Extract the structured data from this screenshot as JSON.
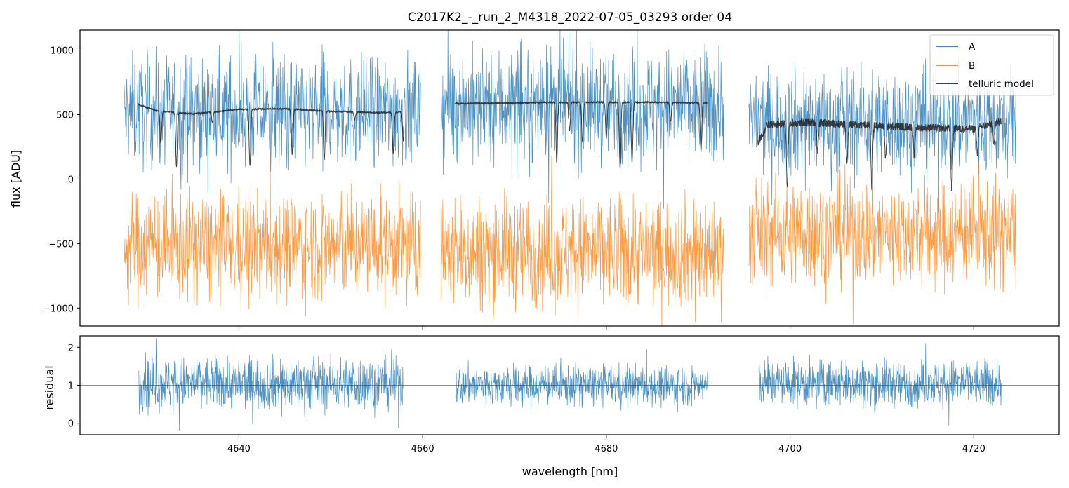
{
  "chart_data": [
    {
      "type": "line",
      "panel": "top",
      "title": "C2017K2_-_run_2_M4318_2022-07-05_03293  order 04",
      "xlabel": "",
      "ylabel": "flux [ADU]",
      "xlim": [
        4622.7,
        4729.3
      ],
      "ylim": [
        -1140,
        1155
      ],
      "yticks": [
        -1000,
        -500,
        0,
        500,
        1000
      ],
      "ytick_labels": [
        "−1000",
        "−500",
        "0",
        "500",
        "1000"
      ],
      "xticks": [
        4640,
        4660,
        4680,
        4700,
        4720
      ],
      "grid": false,
      "legend": {
        "placement": "top-right",
        "entries": [
          "A",
          "B",
          "telluric model"
        ]
      },
      "colors": {
        "A": "#1f77b4",
        "B": "#ff7f0e",
        "telluric model": "#222222"
      },
      "segments": [
        {
          "x_range": [
            4627.5,
            4659.8
          ]
        },
        {
          "x_range": [
            4662.0,
            4692.8
          ]
        },
        {
          "x_range": [
            4695.5,
            4724.6
          ]
        }
      ],
      "series": [
        {
          "name": "A",
          "style": "noisy spectrum",
          "level": [
            {
              "x_range": [
                4627.5,
                4659.8
              ],
              "mean": 520,
              "spread": 280
            },
            {
              "x_range": [
                4662.0,
                4692.8
              ],
              "mean": 570,
              "spread": 290
            },
            {
              "x_range": [
                4695.5,
                4724.6
              ],
              "mean": 440,
              "spread": 270
            }
          ]
        },
        {
          "name": "B",
          "style": "noisy spectrum",
          "level": [
            {
              "x_range": [
                4627.5,
                4659.8
              ],
              "mean": -520,
              "spread": 270
            },
            {
              "x_range": [
                4662.0,
                4692.8
              ],
              "mean": -560,
              "spread": 280
            },
            {
              "x_range": [
                4695.5,
                4724.6
              ],
              "mean": -420,
              "spread": 270
            }
          ]
        },
        {
          "name": "telluric model",
          "style": "continuum with absorption lines",
          "continuum": [
            {
              "x_range": [
                4629.0,
                4658.0
              ],
              "points": [
                [
                  4629.0,
                  580
                ],
                [
                  4631.0,
                  530
                ],
                [
                  4635.0,
                  505
                ],
                [
                  4640.0,
                  540
                ],
                [
                  4645.0,
                  545
                ],
                [
                  4650.0,
                  525
                ],
                [
                  4655.0,
                  515
                ],
                [
                  4658.0,
                  520
                ]
              ]
            },
            {
              "x_range": [
                4663.5,
                4691.0
              ],
              "points": [
                [
                  4663.5,
                  585
                ],
                [
                  4670.0,
                  590
                ],
                [
                  4675.0,
                  595
                ],
                [
                  4680.0,
                  595
                ],
                [
                  4685.0,
                  595
                ],
                [
                  4691.0,
                  590
                ]
              ]
            },
            {
              "x_range": [
                4696.5,
                4723.0
              ],
              "points": [
                [
                  4696.5,
                  280
                ],
                [
                  4697.5,
                  420
                ],
                [
                  4702.0,
                  440
                ],
                [
                  4708.0,
                  420
                ],
                [
                  4714.0,
                  400
                ],
                [
                  4720.0,
                  390
                ],
                [
                  4723.0,
                  450
                ]
              ]
            }
          ],
          "absorption_lines": [
            {
              "x": 4631.5,
              "depth": 250
            },
            {
              "x": 4633.2,
              "depth": 420
            },
            {
              "x": 4637.1,
              "depth": 80
            },
            {
              "x": 4641.2,
              "depth": 440
            },
            {
              "x": 4645.8,
              "depth": 350
            },
            {
              "x": 4649.3,
              "depth": 380
            },
            {
              "x": 4652.6,
              "depth": 60
            },
            {
              "x": 4656.8,
              "depth": 320
            },
            {
              "x": 4657.9,
              "depth": 220
            },
            {
              "x": 4674.6,
              "depth": 470
            },
            {
              "x": 4676.0,
              "depth": 220
            },
            {
              "x": 4677.4,
              "depth": 310
            },
            {
              "x": 4680.0,
              "depth": 280
            },
            {
              "x": 4681.5,
              "depth": 520
            },
            {
              "x": 4682.8,
              "depth": 470
            },
            {
              "x": 4687.0,
              "depth": 150
            },
            {
              "x": 4690.3,
              "depth": 380
            },
            {
              "x": 4699.7,
              "depth": 500
            },
            {
              "x": 4703.0,
              "depth": 220
            },
            {
              "x": 4706.2,
              "depth": 300
            },
            {
              "x": 4708.9,
              "depth": 480
            },
            {
              "x": 4710.4,
              "depth": 250
            },
            {
              "x": 4713.5,
              "depth": 220
            },
            {
              "x": 4717.6,
              "depth": 480
            },
            {
              "x": 4720.4,
              "depth": 200
            },
            {
              "x": 4722.2,
              "depth": 150
            }
          ]
        }
      ]
    },
    {
      "type": "line",
      "panel": "bottom",
      "xlabel": "wavelength [nm]",
      "ylabel": "residual",
      "xlim": [
        4622.7,
        4729.3
      ],
      "ylim": [
        -0.3,
        2.3
      ],
      "yticks": [
        0,
        1,
        2
      ],
      "ytick_labels": [
        "0",
        "1",
        "2"
      ],
      "xticks": [
        4640,
        4660,
        4680,
        4700,
        4720
      ],
      "xtick_labels": [
        "4640",
        "4660",
        "4680",
        "4700",
        "4720"
      ],
      "reference_line": 1,
      "series": [
        {
          "name": "residual",
          "style": "noisy spectrum",
          "level": [
            {
              "x_range": [
                4629.1,
                4657.9
              ],
              "mean": 1.05,
              "spread": 0.45
            },
            {
              "x_range": [
                4663.6,
                4691.1
              ],
              "mean": 1.0,
              "spread": 0.35
            },
            {
              "x_range": [
                4696.6,
                4723.0
              ],
              "mean": 1.05,
              "spread": 0.4
            }
          ]
        }
      ]
    }
  ]
}
